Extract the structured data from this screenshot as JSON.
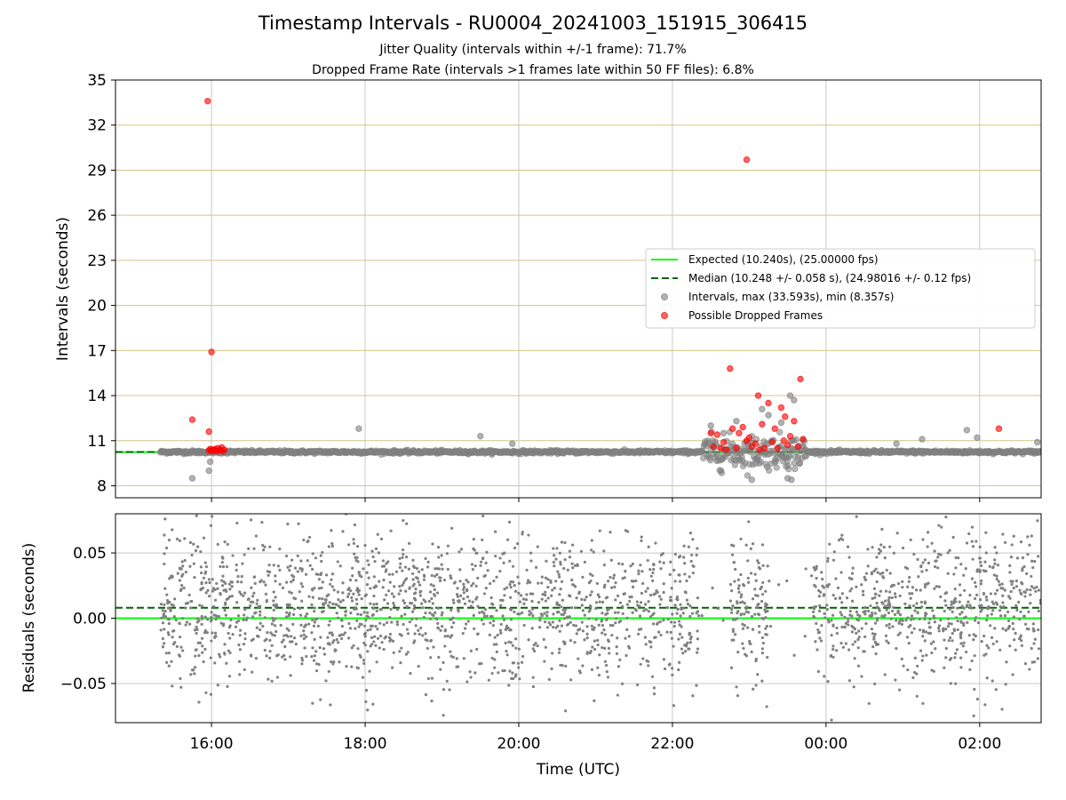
{
  "figure": {
    "title": "Timestamp Intervals - RU0004_20241003_151915_306415",
    "subtitle_line1": "Jitter Quality (intervals within +/-1 frame): 71.7%",
    "subtitle_line2": "Dropped Frame Rate (intervals >1 frames late within 50 FF files): 6.8%"
  },
  "colors": {
    "expected_line": "#00ff00",
    "median_line": "#006400",
    "intervals_points": "#808080",
    "dropped_points": "#ff0000",
    "horizontal_grid": "#d4c48a",
    "vertical_grid": "#c8c8c8"
  },
  "chart_data": [
    {
      "type": "scatter",
      "title": "",
      "xlabel": "",
      "ylabel": "Intervals (seconds)",
      "x_range_hours": [
        14.75,
        26.8
      ],
      "ylim": [
        7.2,
        35
      ],
      "yticks": [
        8,
        11,
        14,
        17,
        20,
        23,
        26,
        29,
        32,
        35
      ],
      "grid": "on",
      "legend_placement": "center-right",
      "expected": {
        "label": "Expected (10.240s), (25.00000 fps)",
        "value": 10.24
      },
      "median": {
        "label": "Median (10.248 +/- 0.058 s), (24.98016 +/- 0.12 fps)",
        "value": 10.248
      },
      "intervals_series": {
        "label": "Intervals, max (33.593s), min (8.357s)",
        "max": 33.593,
        "min": 8.357,
        "x_start": "15:20",
        "x_end": "02:50",
        "outliers": [
          {
            "x": "15:45",
            "y": 8.5
          },
          {
            "x": "15:58",
            "y": 9.0
          },
          {
            "x": "15:59",
            "y": 9.6
          },
          {
            "x": "17:55",
            "y": 11.8
          },
          {
            "x": "19:30",
            "y": 11.3
          },
          {
            "x": "19:55",
            "y": 10.8
          },
          {
            "x": "00:55",
            "y": 10.8
          },
          {
            "x": "01:15",
            "y": 11.1
          },
          {
            "x": "01:50",
            "y": 11.7
          },
          {
            "x": "01:58",
            "y": 11.2
          },
          {
            "x": "02:45",
            "y": 10.9
          },
          {
            "x": "23:10",
            "y": 13.1
          },
          {
            "x": "23:15",
            "y": 12.7
          },
          {
            "x": "23:25",
            "y": 12.2
          },
          {
            "x": "23:32",
            "y": 14.0
          },
          {
            "x": "23:35",
            "y": 13.7
          },
          {
            "x": "22:50",
            "y": 12.3
          },
          {
            "x": "23:02",
            "y": 8.4
          },
          {
            "x": "23:30",
            "y": 8.5
          },
          {
            "x": "23:33",
            "y": 8.4
          },
          {
            "x": "22:30",
            "y": 12.0
          },
          {
            "x": "22:40",
            "y": 11.5
          }
        ]
      },
      "dropped_series": {
        "label": "Possible Dropped Frames",
        "points": [
          {
            "x": "15:57",
            "y": 33.593
          },
          {
            "x": "15:45",
            "y": 12.4
          },
          {
            "x": "15:58",
            "y": 11.6
          },
          {
            "x": "16:00",
            "y": 16.9
          },
          {
            "x": "15:58",
            "y": 10.35
          },
          {
            "x": "15:59",
            "y": 10.45
          },
          {
            "x": "16:00",
            "y": 10.3
          },
          {
            "x": "16:01",
            "y": 10.4
          },
          {
            "x": "16:02",
            "y": 10.35
          },
          {
            "x": "16:03",
            "y": 10.45
          },
          {
            "x": "16:04",
            "y": 10.3
          },
          {
            "x": "16:05",
            "y": 10.5
          },
          {
            "x": "16:06",
            "y": 10.35
          },
          {
            "x": "16:07",
            "y": 10.4
          },
          {
            "x": "16:08",
            "y": 10.55
          },
          {
            "x": "16:09",
            "y": 10.3
          },
          {
            "x": "16:10",
            "y": 10.4
          },
          {
            "x": "22:30",
            "y": 11.5
          },
          {
            "x": "22:32",
            "y": 10.6
          },
          {
            "x": "22:35",
            "y": 11.4
          },
          {
            "x": "22:38",
            "y": 10.5
          },
          {
            "x": "22:40",
            "y": 10.9
          },
          {
            "x": "22:45",
            "y": 15.8
          },
          {
            "x": "22:47",
            "y": 11.8
          },
          {
            "x": "22:50",
            "y": 10.5
          },
          {
            "x": "22:52",
            "y": 11.5
          },
          {
            "x": "22:55",
            "y": 11.9
          },
          {
            "x": "22:58",
            "y": 11.0
          },
          {
            "x": "23:00",
            "y": 11.2
          },
          {
            "x": "23:02",
            "y": 10.6
          },
          {
            "x": "23:05",
            "y": 10.8
          },
          {
            "x": "23:07",
            "y": 14.0
          },
          {
            "x": "23:10",
            "y": 12.1
          },
          {
            "x": "23:12",
            "y": 10.5
          },
          {
            "x": "23:15",
            "y": 13.5
          },
          {
            "x": "23:18",
            "y": 10.9
          },
          {
            "x": "23:20",
            "y": 11.8
          },
          {
            "x": "23:22",
            "y": 10.5
          },
          {
            "x": "23:25",
            "y": 13.2
          },
          {
            "x": "23:27",
            "y": 11.0
          },
          {
            "x": "23:28",
            "y": 12.6
          },
          {
            "x": "23:30",
            "y": 10.7
          },
          {
            "x": "23:32",
            "y": 11.3
          },
          {
            "x": "23:35",
            "y": 12.3
          },
          {
            "x": "23:38",
            "y": 10.6
          },
          {
            "x": "23:40",
            "y": 15.1
          },
          {
            "x": "23:42",
            "y": 11.1
          },
          {
            "x": "22:58",
            "y": 29.7
          },
          {
            "x": "22:42",
            "y": 10.4
          },
          {
            "x": "23:08",
            "y": 10.4
          },
          {
            "x": "02:15",
            "y": 11.8
          }
        ]
      }
    },
    {
      "type": "scatter",
      "title": "",
      "xlabel": "Time (UTC)",
      "ylabel": "Residuals (seconds)",
      "x_range_hours": [
        14.75,
        26.8
      ],
      "ylim": [
        -0.08,
        0.08
      ],
      "yticks": [
        0.05,
        0.0,
        -0.05
      ],
      "ytick_labels": [
        "0.05",
        "0.00",
        "−0.05"
      ],
      "xticks": [
        "16:00",
        "18:00",
        "20:00",
        "22:00",
        "00:00",
        "02:00"
      ],
      "grid": "on",
      "expected_residual": 0.0,
      "median_residual": 0.008,
      "residuals_spread": 0.04,
      "gaps": [
        [
          "22:20",
          "22:45"
        ],
        [
          "23:15",
          "23:50"
        ]
      ]
    }
  ]
}
